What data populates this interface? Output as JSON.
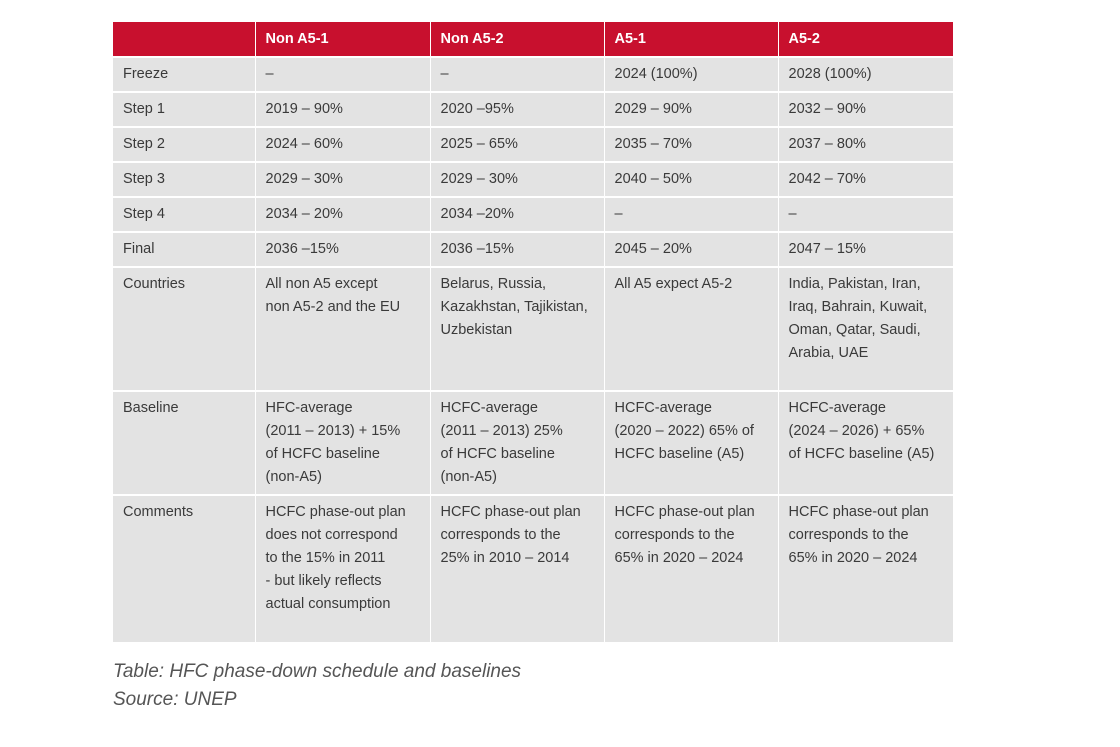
{
  "table": {
    "headers": [
      "",
      "Non A5-1",
      "Non A5-2",
      "A5-1",
      "A5-2"
    ],
    "rows": [
      {
        "label": "Freeze",
        "cells": [
          "–",
          "–",
          "2024 (100%)",
          "2028 (100%)"
        ]
      },
      {
        "label": "Step 1",
        "cells": [
          "2019 – 90%",
          "2020 –95%",
          "2029 – 90%",
          "2032 – 90%"
        ]
      },
      {
        "label": "Step 2",
        "cells": [
          "2024 – 60%",
          "2025 – 65%",
          "2035 – 70%",
          "2037 – 80%"
        ]
      },
      {
        "label": "Step 3",
        "cells": [
          "2029 – 30%",
          "2029 – 30%",
          "2040 – 50%",
          "2042 – 70%"
        ]
      },
      {
        "label": "Step 4",
        "cells": [
          "2034 – 20%",
          "2034 –20%",
          "–",
          "–"
        ]
      },
      {
        "label": "Final",
        "cells": [
          "2036 –15%",
          "2036 –15%",
          "2045 – 20%",
          "2047 – 15%"
        ]
      },
      {
        "label": "Countries",
        "cells": [
          "All non A5 except\nnon A5-2 and the EU",
          "Belarus, Russia,\nKazakhstan, Tajikistan,\nUzbekistan",
          "All A5 expect A5-2",
          "India, Pakistan, Iran,\nIraq, Bahrain, Kuwait,\nOman, Qatar, Saudi,\nArabia, UAE"
        ]
      },
      {
        "label": "Baseline",
        "cells": [
          "HFC-average\n(2011 – 2013) + 15%\nof HCFC baseline\n(non-A5)",
          "HCFC-average\n(2011 – 2013) 25%\nof HCFC baseline\n(non-A5)",
          "HCFC-average\n(2020 – 2022) 65% of\nHCFC baseline (A5)",
          "HCFC-average\n(2024 – 2026) + 65%\nof HCFC baseline (A5)"
        ]
      },
      {
        "label": "Comments",
        "cells": [
          "HCFC phase-out plan\ndoes not correspond\nto the 15% in 2011\n- but likely reflects\nactual consumption",
          "HCFC phase-out plan\ncorresponds to the\n25% in 2010 – 2014",
          "HCFC phase-out plan\ncorresponds to the\n65% in 2020 – 2024",
          "HCFC phase-out plan\ncorresponds to the\n65% in 2020 – 2024"
        ]
      }
    ]
  },
  "caption": {
    "title": "Table: HFC phase-down schedule and baselines",
    "source": "Source: UNEP"
  },
  "colors": {
    "header_bg": "#c8102e",
    "cell_bg": "#e3e3e3"
  }
}
